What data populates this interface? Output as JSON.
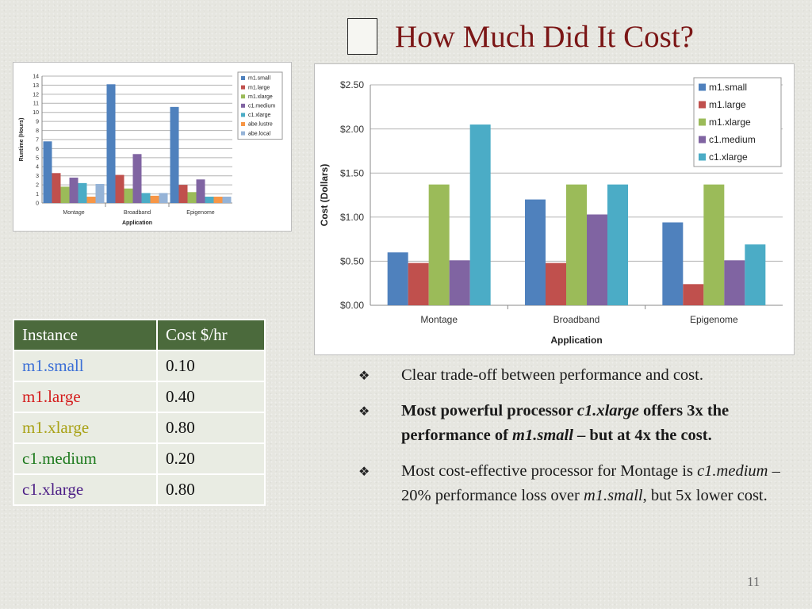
{
  "slide": {
    "title": "How Much Did It Cost?",
    "page_number": "11"
  },
  "runtime_chart": {
    "type": "bar",
    "ylabel": "Runtime (Hours)",
    "xlabel": "Application",
    "categories": [
      "Montage",
      "Broadband",
      "Epigenome"
    ],
    "ylim": [
      0,
      14
    ],
    "yticks": [
      0,
      1,
      2,
      3,
      4,
      5,
      6,
      7,
      8,
      9,
      10,
      11,
      12,
      13,
      14
    ],
    "legend": "right",
    "grid": true,
    "series": [
      {
        "name": "m1.small",
        "color": "#4f81bd",
        "values": [
          6.8,
          13.1,
          10.6
        ]
      },
      {
        "name": "m1.large",
        "color": "#c0504d",
        "values": [
          3.3,
          3.1,
          2.0
        ]
      },
      {
        "name": "m1.xlarge",
        "color": "#9bbb59",
        "values": [
          1.8,
          1.6,
          1.2
        ]
      },
      {
        "name": "c1.medium",
        "color": "#8064a2",
        "values": [
          2.8,
          5.4,
          2.6
        ]
      },
      {
        "name": "c1.xlarge",
        "color": "#4bacc6",
        "values": [
          2.2,
          1.1,
          0.7
        ]
      },
      {
        "name": "abe.lustre",
        "color": "#f79646",
        "values": [
          0.7,
          0.8,
          0.7
        ]
      },
      {
        "name": "abe.local",
        "color": "#95b3d7",
        "values": [
          2.1,
          1.1,
          0.7
        ]
      }
    ]
  },
  "chart_data": {
    "type": "bar",
    "ylabel": "Cost (Dollars)",
    "xlabel": "Application",
    "categories": [
      "Montage",
      "Broadband",
      "Epigenome"
    ],
    "ylim": [
      0,
      2.5
    ],
    "yticks": [
      0,
      0.5,
      1.0,
      1.5,
      2.0,
      2.5
    ],
    "ytick_labels": [
      "$0.00",
      "$0.50",
      "$1.00",
      "$1.50",
      "$2.00",
      "$2.50"
    ],
    "legend": "top-right",
    "grid": true,
    "series": [
      {
        "name": "m1.small",
        "color": "#4f81bd",
        "values": [
          0.6,
          1.2,
          0.94
        ]
      },
      {
        "name": "m1.large",
        "color": "#c0504d",
        "values": [
          0.48,
          0.48,
          0.24
        ]
      },
      {
        "name": "m1.xlarge",
        "color": "#9bbb59",
        "values": [
          1.37,
          1.37,
          1.37
        ]
      },
      {
        "name": "c1.medium",
        "color": "#8064a2",
        "values": [
          0.51,
          1.03,
          0.51
        ]
      },
      {
        "name": "c1.xlarge",
        "color": "#4bacc6",
        "values": [
          2.05,
          1.37,
          0.69
        ]
      }
    ]
  },
  "table": {
    "headers": [
      "Instance",
      "Cost $/hr"
    ],
    "rows": [
      {
        "name": "m1.small",
        "cost": "0.10",
        "color": "#3b6fd6"
      },
      {
        "name": "m1.large",
        "cost": "0.40",
        "color": "#d41c1c"
      },
      {
        "name": "m1.xlarge",
        "cost": "0.80",
        "color": "#a8a114"
      },
      {
        "name": "c1.medium",
        "cost": "0.20",
        "color": "#1e7a1e"
      },
      {
        "name": "c1.xlarge",
        "cost": "0.80",
        "color": "#4d1f86"
      }
    ]
  },
  "bullets": {
    "marker": "❖",
    "b1": {
      "text": "Clear trade-off between performance and cost."
    },
    "b2": {
      "t1": "Most powerful processor ",
      "t2": "c1.xlarge",
      "t3": " offers 3x the performance of ",
      "t4": "m1.small",
      "t5": " – but at 4x the cost."
    },
    "b3": {
      "t1": "Most cost-effective processor for Montage is ",
      "t2": "c1.medium",
      "t3": " – 20% performance loss over ",
      "t4": "m1.small",
      "t5": ", but 5x lower cost."
    }
  }
}
